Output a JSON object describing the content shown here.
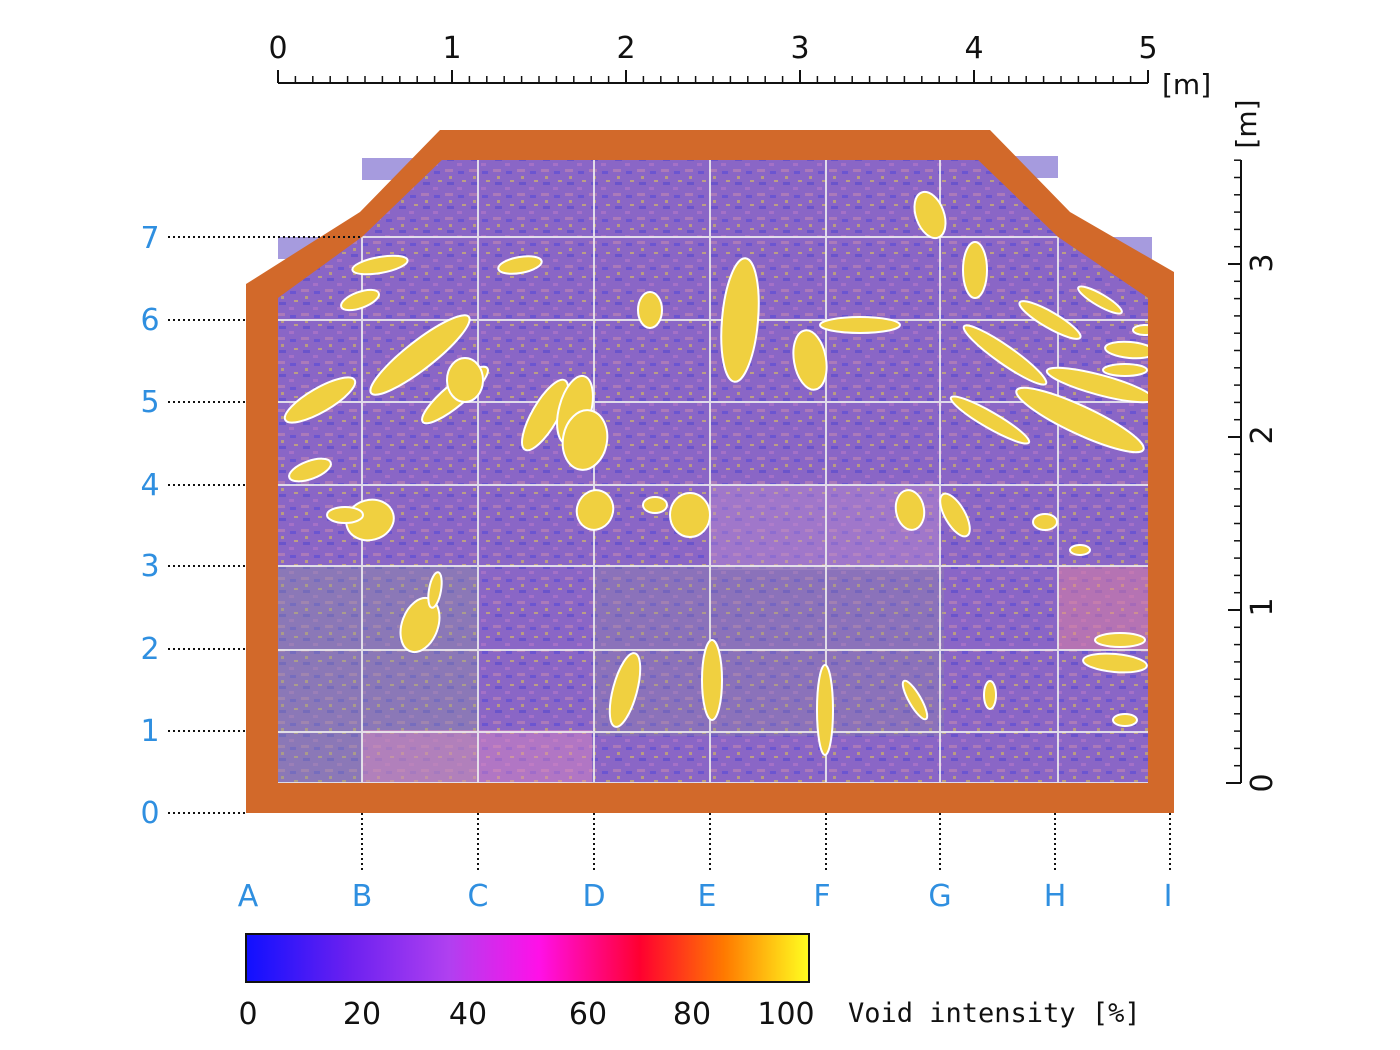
{
  "top_scale": {
    "unit": "[m]",
    "labels": [
      "0",
      "1",
      "2",
      "3",
      "4",
      "5"
    ]
  },
  "right_scale": {
    "unit": "[m]",
    "labels": [
      "0",
      "1",
      "2",
      "3"
    ]
  },
  "row_labels": [
    "0",
    "1",
    "2",
    "3",
    "4",
    "5",
    "6",
    "7"
  ],
  "column_labels": [
    "A",
    "B",
    "C",
    "D",
    "E",
    "F",
    "G",
    "H",
    "I"
  ],
  "colorbar": {
    "title": "Void intensity [%]",
    "tick_labels": [
      "0",
      "20",
      "40",
      "60",
      "80",
      "100"
    ],
    "range": [
      0,
      100
    ],
    "colors": [
      "#1010ff",
      "#8a2be2",
      "#c060e0",
      "#ff10e0",
      "#ff0040",
      "#ff8000",
      "#ffff20"
    ]
  },
  "colors": {
    "wall": "#d2692a",
    "base_fill": "#8c68c8",
    "void_fill": "#f0d040",
    "grid_line": "#f0f0f0",
    "label_blue": "#2f8fe0"
  }
}
